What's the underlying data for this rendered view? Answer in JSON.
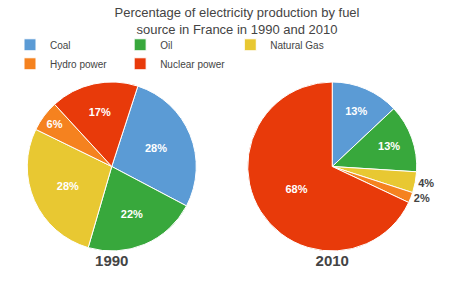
{
  "title": "Percentage of electricity production by fuel\nsource in France in 1990 and 2010",
  "chart_data": [
    {
      "type": "pie",
      "title": "1990",
      "categories": [
        "Coal",
        "Oil",
        "Natural Gas",
        "Hydro power",
        "Nuclear power"
      ],
      "values": [
        28,
        22,
        28,
        6,
        17
      ],
      "value_labels": [
        "28%",
        "22%",
        "28%",
        "6%",
        "17%"
      ],
      "colors": [
        "#5B9BD5",
        "#38A83C",
        "#E8C832",
        "#F5821F",
        "#E83A0A"
      ],
      "data_labels": true,
      "legend": "top"
    },
    {
      "type": "pie",
      "title": "2010",
      "categories": [
        "Coal",
        "Oil",
        "Natural Gas",
        "Hydro power",
        "Nuclear power"
      ],
      "values": [
        13,
        13,
        4,
        2,
        68
      ],
      "value_labels": [
        "13%",
        "13%",
        "4%",
        "2%",
        "68%"
      ],
      "colors": [
        "#5B9BD5",
        "#38A83C",
        "#E8C832",
        "#F5821F",
        "#E83A0A"
      ],
      "data_labels": true,
      "legend": "top"
    }
  ]
}
